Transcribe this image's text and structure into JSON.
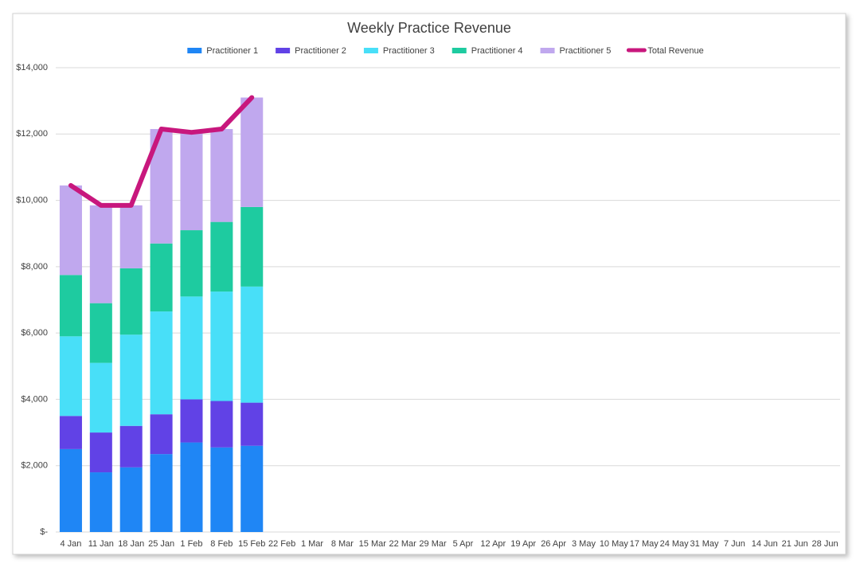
{
  "chart_data": {
    "type": "bar",
    "stacked": true,
    "title": "Weekly Practice Revenue",
    "categories": [
      "4 Jan",
      "11 Jan",
      "18 Jan",
      "25 Jan",
      "1 Feb",
      "8 Feb",
      "15 Feb",
      "22 Feb",
      "1 Mar",
      "8 Mar",
      "15 Mar",
      "22 Mar",
      "29 Mar",
      "5 Apr",
      "12 Apr",
      "19 Apr",
      "26 Apr",
      "3 May",
      "10 May",
      "17 May",
      "24 May",
      "31 May",
      "7 Jun",
      "14 Jun",
      "21 Jun",
      "28 Jun"
    ],
    "series": [
      {
        "name": "Practitioner 1",
        "type": "bar",
        "color": "#1f86f5",
        "values": [
          2500,
          1800,
          1950,
          2350,
          2700,
          2550,
          2600,
          null,
          null,
          null,
          null,
          null,
          null,
          null,
          null,
          null,
          null,
          null,
          null,
          null,
          null,
          null,
          null,
          null,
          null,
          null
        ]
      },
      {
        "name": "Practitioner 2",
        "type": "bar",
        "color": "#6142e6",
        "values": [
          1000,
          1200,
          1250,
          1200,
          1300,
          1400,
          1300,
          null,
          null,
          null,
          null,
          null,
          null,
          null,
          null,
          null,
          null,
          null,
          null,
          null,
          null,
          null,
          null,
          null,
          null,
          null
        ]
      },
      {
        "name": "Practitioner 3",
        "type": "bar",
        "color": "#48dff8",
        "values": [
          2400,
          2100,
          2750,
          3100,
          3100,
          3300,
          3500,
          null,
          null,
          null,
          null,
          null,
          null,
          null,
          null,
          null,
          null,
          null,
          null,
          null,
          null,
          null,
          null,
          null,
          null,
          null
        ]
      },
      {
        "name": "Practitioner 4",
        "type": "bar",
        "color": "#1ecba0",
        "values": [
          1850,
          1800,
          2000,
          2050,
          2000,
          2100,
          2400,
          null,
          null,
          null,
          null,
          null,
          null,
          null,
          null,
          null,
          null,
          null,
          null,
          null,
          null,
          null,
          null,
          null,
          null,
          null
        ]
      },
      {
        "name": "Practitioner 5",
        "type": "bar",
        "color": "#c0a8ee",
        "values": [
          2700,
          2950,
          1900,
          3450,
          2950,
          2800,
          3300,
          null,
          null,
          null,
          null,
          null,
          null,
          null,
          null,
          null,
          null,
          null,
          null,
          null,
          null,
          null,
          null,
          null,
          null,
          null
        ]
      },
      {
        "name": "Total Revenue",
        "type": "line",
        "color": "#c8177d",
        "values": [
          10450,
          9850,
          9850,
          12150,
          12050,
          12150,
          13100,
          null,
          null,
          null,
          null,
          null,
          null,
          null,
          null,
          null,
          null,
          null,
          null,
          null,
          null,
          null,
          null,
          null,
          null,
          null
        ]
      }
    ],
    "ylim": [
      0,
      14000
    ],
    "yticks": [
      {
        "value": 0,
        "label": "$-"
      },
      {
        "value": 2000,
        "label": "$2,000"
      },
      {
        "value": 4000,
        "label": "$4,000"
      },
      {
        "value": 6000,
        "label": "$6,000"
      },
      {
        "value": 8000,
        "label": "$8,000"
      },
      {
        "value": 10000,
        "label": "$10,000"
      },
      {
        "value": 12000,
        "label": "$12,000"
      },
      {
        "value": 14000,
        "label": "$14,000"
      }
    ],
    "grid": true,
    "legend": "top"
  }
}
